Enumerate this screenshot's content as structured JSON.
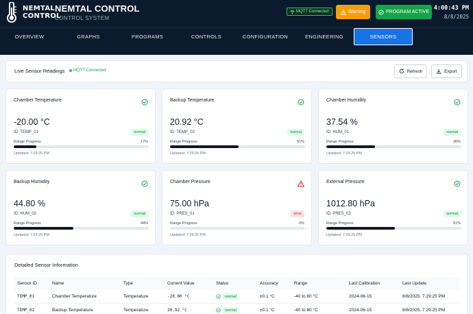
{
  "header": {
    "logo_line1": "NEMTAL",
    "logo_line2": "CONTROL",
    "title": "NEMTAL CONTROL",
    "subtitle": "CONTROL SYSTEM",
    "mqtt_label": "MQTT Connected",
    "warning_label": "Warning",
    "program_label": "PROGRAM ACTIVE",
    "time": "4:00:43 PM",
    "date": "8/8/2025"
  },
  "nav": {
    "tabs": [
      {
        "label": "OVERVIEW",
        "active": false
      },
      {
        "label": "GRAPHS",
        "active": false
      },
      {
        "label": "PROGRAMS",
        "active": false
      },
      {
        "label": "CONTROLS",
        "active": false
      },
      {
        "label": "CONFIGURATION",
        "active": false
      },
      {
        "label": "ENGINEERING",
        "active": false
      },
      {
        "label": "SENSORS",
        "active": true
      }
    ]
  },
  "live": {
    "title": "Live Sensor Readings",
    "status": "MQTT Connected",
    "refresh_label": "Refresh",
    "export_label": "Export"
  },
  "sensors": [
    {
      "name": "Chamber Temperature",
      "value": "-20.00 °C",
      "id": "ID: TEMP_01",
      "status": "normal",
      "range_label": "Range Progress",
      "range_pct": "17%",
      "progress": 0.17,
      "updated": "Updated: 7:29:25 PM"
    },
    {
      "name": "Backup Temperature",
      "value": "20.92 °C",
      "id": "ID: TEMP_02",
      "status": "normal",
      "range_label": "Range Progress",
      "range_pct": "51%",
      "progress": 0.51,
      "updated": "Updated: 7:29:25 PM"
    },
    {
      "name": "Chamber Humidity",
      "value": "37.54 %",
      "id": "ID: HUM_01",
      "status": "normal",
      "range_label": "Range Progress",
      "range_pct": "36%",
      "progress": 0.36,
      "updated": "Updated: 7:29:25 PM"
    },
    {
      "name": "Backup Humidity",
      "value": "44.80 %",
      "id": "ID: HUM_02",
      "status": "normal",
      "range_label": "Range Progress",
      "range_pct": "44%",
      "progress": 0.44,
      "updated": "Updated: 7:29:25 PM"
    },
    {
      "name": "Chamber Pressure",
      "value": "75.00 hPa",
      "id": "ID: PRES_01",
      "status": "error",
      "range_label": "Range Progress",
      "range_pct": "0%",
      "progress": 0.0,
      "updated": "Updated: 7:29:25 PM"
    },
    {
      "name": "External Pressure",
      "value": "1012.80 hPa",
      "id": "ID: PRES_02",
      "status": "normal",
      "range_label": "Range Progress",
      "range_pct": "51%",
      "progress": 0.51,
      "updated": "Updated: 7:29:25 PM"
    }
  ],
  "details": {
    "title": "Detailed Sensor Information",
    "columns": [
      "Sensor ID",
      "Name",
      "Type",
      "Current Value",
      "Status",
      "Accuracy",
      "Range",
      "Last Calibration",
      "Last Update"
    ],
    "rows": [
      [
        "TEMP_01",
        "Chamber Temperature",
        "Temperature",
        "-20.00 °C",
        "normal",
        "±0.1 °C",
        "-40 to 80 °C",
        "2024-06-15",
        "8/8/2025, 7:29:25 PM"
      ],
      [
        "TEMP_02",
        "Backup Temperature",
        "Temperature",
        "20.92 °C",
        "normal",
        "±0.1 °C",
        "-40 to 80 °C",
        "2024-06-15",
        "8/8/2025, 7:29:25 PM"
      ]
    ]
  },
  "colors": {
    "header_bg": "#0b1a2c",
    "active_tab": "#1673e8",
    "warning": "#f59e0b",
    "success": "#16a34a",
    "error": "#dc2626"
  }
}
